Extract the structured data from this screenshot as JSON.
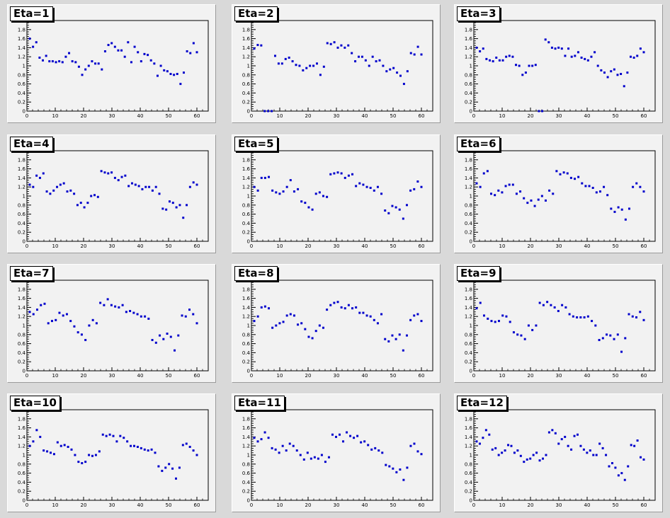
{
  "background_color": "#d9d9d9",
  "pad_color": "#f2f2f2",
  "marker_color": "#0000cc",
  "chart_data": [
    {
      "type": "scatter",
      "title": "Eta=1",
      "y": [
        1.6,
        1.42,
        1.52,
        1.18,
        1.12,
        1.22,
        1.1,
        1.1,
        1.08,
        1.1,
        1.08,
        1.2,
        1.28,
        1.1,
        1.08,
        0.98,
        0.8,
        0.92,
        1.0,
        1.1,
        1.05,
        1.05,
        0.92,
        1.32,
        1.46,
        1.5,
        1.42,
        1.34,
        1.34,
        1.2,
        1.52,
        1.08,
        1.42,
        1.3,
        1.1,
        1.26,
        1.24,
        1.12,
        1.05,
        0.78,
        1.0,
        0.9,
        0.88,
        0.82,
        0.8,
        0.82,
        0.6,
        0.85,
        1.32,
        1.28,
        1.5,
        1.3
      ]
    },
    {
      "type": "scatter",
      "title": "Eta=2",
      "y": [
        1.38,
        1.46,
        1.45,
        0.0,
        0.0,
        0.0,
        1.22,
        1.05,
        1.05,
        1.15,
        1.18,
        1.1,
        1.02,
        1.0,
        0.9,
        0.95,
        1.0,
        1.0,
        1.05,
        0.8,
        0.98,
        1.5,
        1.48,
        1.52,
        1.4,
        1.45,
        1.4,
        1.45,
        1.28,
        1.1,
        1.2,
        1.2,
        1.12,
        1.0,
        1.2,
        1.1,
        1.12,
        1.0,
        0.88,
        0.92,
        0.95,
        0.85,
        0.78,
        0.6,
        0.88,
        1.28,
        1.25,
        1.42,
        1.25
      ]
    },
    {
      "type": "scatter",
      "title": "Eta=3",
      "y": [
        1.4,
        1.32,
        1.38,
        1.15,
        1.12,
        1.1,
        1.18,
        1.12,
        1.12,
        1.2,
        1.22,
        1.2,
        1.02,
        1.0,
        0.8,
        0.85,
        1.0,
        1.0,
        1.02,
        0.0,
        0.0,
        1.58,
        1.52,
        1.4,
        1.38,
        1.4,
        1.38,
        1.22,
        1.38,
        1.2,
        1.22,
        1.3,
        1.18,
        1.15,
        1.12,
        1.2,
        1.3,
        1.0,
        0.9,
        0.85,
        0.75,
        0.88,
        0.92,
        0.8,
        0.82,
        0.55,
        0.85,
        1.2,
        1.18,
        1.22,
        1.38,
        1.3
      ]
    },
    {
      "type": "scatter",
      "title": "Eta=4",
      "y": [
        1.25,
        1.2,
        1.45,
        1.4,
        1.5,
        1.1,
        1.05,
        1.12,
        1.2,
        1.25,
        1.28,
        1.1,
        1.12,
        1.05,
        0.8,
        0.85,
        0.75,
        0.85,
        1.0,
        1.02,
        0.98,
        1.55,
        1.52,
        1.5,
        1.52,
        1.4,
        1.35,
        1.42,
        1.45,
        1.22,
        1.28,
        1.25,
        1.22,
        1.15,
        1.2,
        1.2,
        1.12,
        1.2,
        1.05,
        0.72,
        0.7,
        0.88,
        0.85,
        0.75,
        0.8,
        0.52,
        0.8,
        1.2,
        1.3,
        1.25
      ]
    },
    {
      "type": "scatter",
      "title": "Eta=5",
      "y": [
        1.2,
        1.12,
        1.4,
        1.4,
        1.42,
        1.12,
        1.08,
        1.05,
        1.1,
        1.2,
        1.35,
        1.1,
        1.15,
        0.88,
        0.85,
        0.75,
        0.7,
        1.05,
        1.08,
        1.0,
        0.98,
        1.48,
        1.5,
        1.52,
        1.5,
        1.4,
        1.45,
        1.48,
        1.22,
        1.28,
        1.25,
        1.2,
        1.18,
        1.12,
        1.2,
        1.05,
        0.68,
        0.62,
        0.78,
        0.75,
        0.7,
        0.5,
        0.8,
        1.12,
        1.15,
        1.32,
        1.2
      ]
    },
    {
      "type": "scatter",
      "title": "Eta=6",
      "y": [
        1.28,
        1.2,
        1.5,
        1.55,
        1.05,
        1.02,
        1.12,
        1.08,
        1.22,
        1.25,
        1.25,
        1.05,
        1.1,
        0.95,
        0.85,
        0.9,
        0.78,
        0.92,
        1.0,
        0.9,
        1.12,
        1.05,
        1.55,
        1.48,
        1.52,
        1.5,
        1.4,
        1.38,
        1.42,
        1.28,
        1.22,
        1.22,
        1.18,
        1.08,
        1.1,
        1.2,
        1.02,
        0.72,
        0.65,
        0.75,
        0.7,
        0.48,
        0.72,
        1.2,
        1.28,
        1.2,
        1.1
      ]
    },
    {
      "type": "scatter",
      "title": "Eta=7",
      "y": [
        1.3,
        1.25,
        1.35,
        1.45,
        1.48,
        1.05,
        1.1,
        1.12,
        1.28,
        1.22,
        1.25,
        1.1,
        0.98,
        0.85,
        0.8,
        0.68,
        1.0,
        1.12,
        1.05,
        1.5,
        1.45,
        1.58,
        1.45,
        1.42,
        1.4,
        1.45,
        1.3,
        1.32,
        1.28,
        1.25,
        1.2,
        1.2,
        1.15,
        0.68,
        0.62,
        0.78,
        0.7,
        0.82,
        0.75,
        0.45,
        0.78,
        1.22,
        1.2,
        1.35,
        1.25,
        1.05
      ]
    },
    {
      "type": "scatter",
      "title": "Eta=8",
      "y": [
        1.1,
        1.2,
        1.4,
        1.42,
        1.38,
        0.95,
        1.0,
        1.05,
        1.08,
        1.22,
        1.25,
        1.22,
        1.02,
        1.05,
        0.92,
        0.75,
        0.72,
        0.88,
        1.0,
        0.95,
        1.35,
        1.45,
        1.5,
        1.52,
        1.4,
        1.38,
        1.45,
        1.38,
        1.4,
        1.28,
        1.28,
        1.22,
        1.2,
        1.12,
        1.05,
        1.25,
        0.7,
        0.65,
        0.78,
        0.7,
        0.8,
        0.45,
        0.78,
        1.12,
        1.22,
        1.25,
        1.1
      ]
    },
    {
      "type": "scatter",
      "title": "Eta=9",
      "y": [
        1.38,
        1.5,
        1.22,
        1.15,
        1.1,
        1.08,
        1.1,
        1.22,
        1.2,
        1.08,
        0.85,
        0.8,
        0.78,
        0.7,
        1.0,
        0.9,
        1.0,
        1.5,
        1.45,
        1.52,
        1.45,
        1.4,
        1.32,
        1.45,
        1.4,
        1.25,
        1.2,
        1.18,
        1.18,
        1.18,
        1.2,
        1.1,
        1.0,
        0.68,
        0.72,
        0.8,
        0.78,
        0.7,
        0.8,
        0.42,
        0.72,
        1.25,
        1.2,
        1.18,
        1.3,
        1.12
      ]
    },
    {
      "type": "scatter",
      "title": "Eta=10",
      "y": [
        1.2,
        1.3,
        1.55,
        1.4,
        1.1,
        1.08,
        1.05,
        1.02,
        1.28,
        1.2,
        1.22,
        1.18,
        1.12,
        1.0,
        0.85,
        0.82,
        0.85,
        1.0,
        0.98,
        1.0,
        1.08,
        1.45,
        1.42,
        1.45,
        1.42,
        1.3,
        1.42,
        1.38,
        1.3,
        1.2,
        1.2,
        1.18,
        1.15,
        1.12,
        1.1,
        1.12,
        1.05,
        0.75,
        0.65,
        0.72,
        0.8,
        0.7,
        0.48,
        0.72,
        1.22,
        1.25,
        1.18,
        1.1,
        1.0
      ]
    },
    {
      "type": "scatter",
      "title": "Eta=11",
      "y": [
        1.38,
        1.3,
        1.35,
        1.5,
        1.38,
        1.15,
        1.12,
        1.05,
        1.2,
        1.1,
        1.25,
        1.2,
        1.1,
        1.0,
        0.9,
        1.05,
        0.92,
        0.95,
        0.92,
        1.0,
        0.85,
        0.95,
        1.45,
        1.4,
        1.45,
        1.3,
        1.5,
        1.42,
        1.38,
        1.42,
        1.28,
        1.3,
        1.22,
        1.12,
        1.15,
        1.1,
        1.05,
        0.78,
        0.75,
        0.7,
        0.62,
        0.68,
        0.45,
        0.72,
        1.2,
        1.25,
        1.08,
        1.02
      ]
    },
    {
      "type": "scatter",
      "title": "Eta=12",
      "y": [
        1.3,
        1.25,
        1.38,
        1.55,
        1.45,
        1.12,
        1.15,
        1.0,
        1.05,
        1.1,
        1.22,
        1.2,
        1.05,
        1.1,
        0.98,
        0.85,
        0.9,
        0.92,
        1.0,
        1.05,
        0.88,
        0.92,
        1.0,
        1.5,
        1.55,
        1.48,
        1.25,
        1.35,
        1.4,
        1.2,
        1.12,
        1.42,
        1.45,
        1.2,
        1.12,
        1.05,
        1.1,
        1.0,
        1.0,
        1.25,
        1.15,
        1.0,
        0.75,
        0.82,
        0.72,
        0.55,
        0.6,
        0.45,
        0.75,
        1.22,
        1.2,
        1.32,
        0.95,
        0.9
      ]
    }
  ],
  "axes": {
    "x_range": [
      0,
      64
    ],
    "y_range": [
      0,
      2.0
    ],
    "x_ticks": [
      0,
      10,
      20,
      30,
      40,
      50,
      60
    ],
    "y_ticks": [
      0.2,
      0.4,
      0.6,
      0.8,
      1,
      1.2,
      1.4,
      1.6,
      1.8
    ]
  }
}
